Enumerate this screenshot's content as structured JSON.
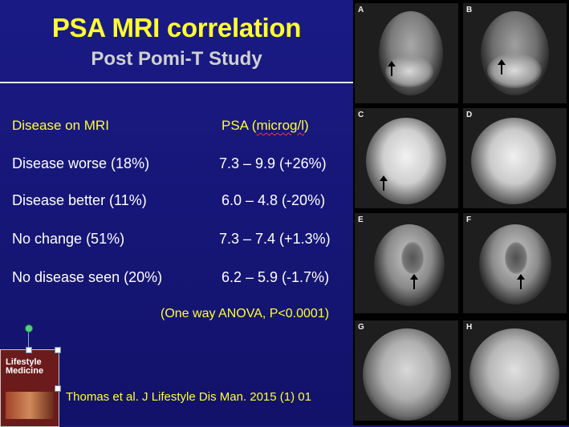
{
  "slide": {
    "title": "PSA MRI correlation",
    "subtitle": "Post Pomi-T Study"
  },
  "table": {
    "header": {
      "col1": "Disease on MRI",
      "col2_prefix": "PSA  (",
      "col2_unit": "microg/l",
      "col2_suffix": ")"
    },
    "rows": [
      {
        "label": "Disease worse (18%)",
        "psa": "7.3 – 9.9 (+26%)"
      },
      {
        "label": "Disease better (11%)",
        "psa": "6.0 – 4.8 (-20%)"
      },
      {
        "label": "No change (51%)",
        "psa": "7.3 – 7.4 (+1.3%)"
      },
      {
        "label": "No disease seen (20%)",
        "psa": "6.2 – 5.9 (-1.7%)"
      }
    ],
    "statistic": "(One way ANOVA, P<0.0001)"
  },
  "citation": "Thomas et al. J Lifestyle Dis Man. 2015 (1) 01",
  "journal_cover": {
    "title_line1": "Lifestyle",
    "title_line2": "Medicine"
  },
  "mri_images": [
    {
      "label": "A",
      "arrow": true
    },
    {
      "label": "B",
      "arrow": true
    },
    {
      "label": "C",
      "arrow": true
    },
    {
      "label": "D",
      "arrow": false
    },
    {
      "label": "E",
      "arrow": true
    },
    {
      "label": "F",
      "arrow": true
    },
    {
      "label": "G",
      "arrow": false
    },
    {
      "label": "H",
      "arrow": false
    }
  ],
  "colors": {
    "background": "#17177a",
    "title": "#ffff33",
    "subtitle": "#d0d0d0",
    "body_text": "#ffffff"
  }
}
